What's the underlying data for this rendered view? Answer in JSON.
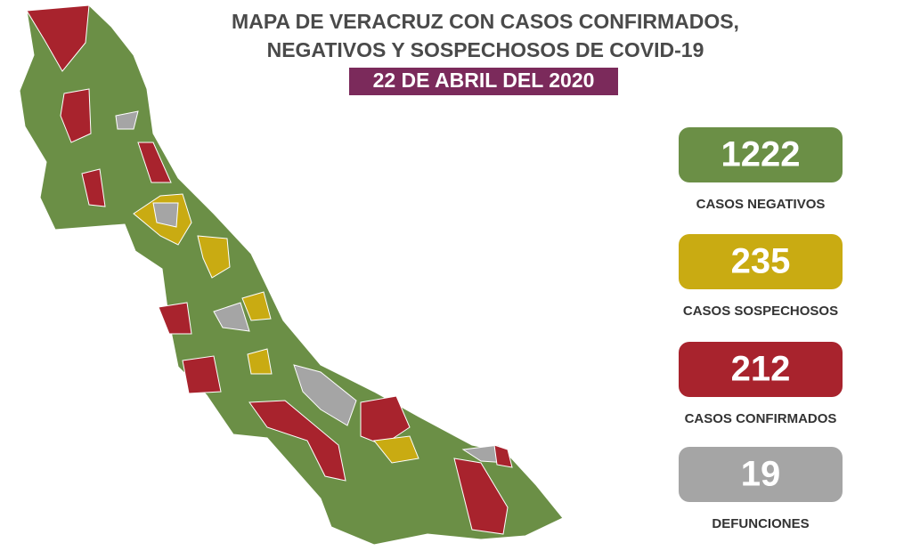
{
  "title": [
    "MAPA DE VERACRUZ CON CASOS CONFIRMADOS,",
    "NEGATIVOS Y SOSPECHOSOS DE COVID-19"
  ],
  "date": "22 DE ABRIL DEL 2020",
  "stats": [
    {
      "value": 1222,
      "label": "CASOS NEGATIVOS",
      "color": "#6b8f46"
    },
    {
      "value": 235,
      "label": "CASOS SOSPECHOSOS",
      "color": "#c9ab12"
    },
    {
      "value": 212,
      "label": "CASOS CONFIRMADOS",
      "color": "#a8232d"
    },
    {
      "value": 19,
      "label": "DEFUNCIONES",
      "color": "#a5a5a5"
    }
  ]
}
